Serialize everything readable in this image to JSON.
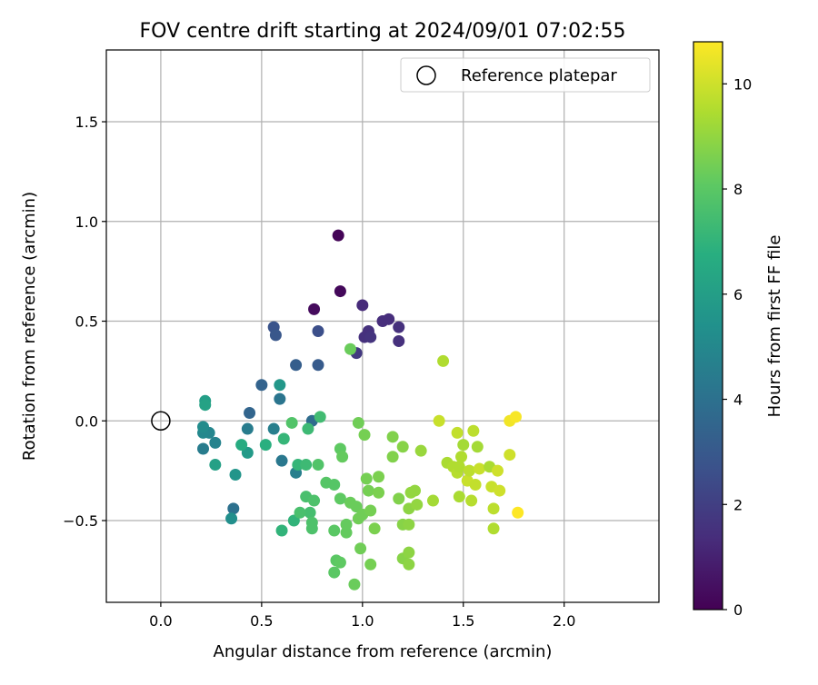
{
  "chart_data": {
    "type": "scatter",
    "title": "FOV centre drift starting at 2024/09/01 07:02:55",
    "xlabel": "Angular distance from reference (arcmin)",
    "ylabel": "Rotation from reference (arcmin)",
    "xlim": [
      -0.27,
      2.47
    ],
    "ylim": [
      -0.91,
      1.86
    ],
    "xticks": [
      "0.0",
      "0.5",
      "1.0",
      "1.5",
      "2.0"
    ],
    "yticks": [
      "−0.5",
      "0.0",
      "0.5",
      "1.0",
      "1.5"
    ],
    "grid": true,
    "legend": {
      "placement": "top-right",
      "entries": [
        "Reference platepar"
      ]
    },
    "colorbar": {
      "label": "Hours from first FF file",
      "range": [
        0,
        10.8
      ],
      "ticks": [
        "0",
        "2",
        "4",
        "6",
        "8",
        "10"
      ],
      "colormap": "viridis"
    },
    "reference_point": {
      "x": 0.0,
      "y": 0.0
    },
    "points": [
      {
        "x": 0.88,
        "y": 0.93,
        "c": 0.1
      },
      {
        "x": 0.89,
        "y": 0.65,
        "c": 0.2
      },
      {
        "x": 0.76,
        "y": 0.56,
        "c": 0.3
      },
      {
        "x": 1.0,
        "y": 0.58,
        "c": 1.3
      },
      {
        "x": 1.1,
        "y": 0.5,
        "c": 1.4
      },
      {
        "x": 1.13,
        "y": 0.51,
        "c": 1.4
      },
      {
        "x": 1.18,
        "y": 0.47,
        "c": 1.5
      },
      {
        "x": 1.18,
        "y": 0.4,
        "c": 1.5
      },
      {
        "x": 1.03,
        "y": 0.45,
        "c": 1.5
      },
      {
        "x": 1.01,
        "y": 0.42,
        "c": 1.5
      },
      {
        "x": 1.04,
        "y": 0.42,
        "c": 1.6
      },
      {
        "x": 0.97,
        "y": 0.34,
        "c": 1.8
      },
      {
        "x": 0.78,
        "y": 0.45,
        "c": 2.6
      },
      {
        "x": 0.56,
        "y": 0.47,
        "c": 2.8
      },
      {
        "x": 0.57,
        "y": 0.43,
        "c": 2.9
      },
      {
        "x": 0.78,
        "y": 0.28,
        "c": 3.1
      },
      {
        "x": 0.67,
        "y": 0.28,
        "c": 3.2
      },
      {
        "x": 0.5,
        "y": 0.18,
        "c": 3.4
      },
      {
        "x": 0.44,
        "y": 0.04,
        "c": 3.5
      },
      {
        "x": 0.75,
        "y": 0.0,
        "c": 3.8
      },
      {
        "x": 0.36,
        "y": -0.44,
        "c": 4.0
      },
      {
        "x": 0.59,
        "y": 0.11,
        "c": 4.2
      },
      {
        "x": 0.6,
        "y": -0.2,
        "c": 4.3
      },
      {
        "x": 0.43,
        "y": -0.04,
        "c": 4.5
      },
      {
        "x": 0.56,
        "y": -0.04,
        "c": 4.6
      },
      {
        "x": 0.67,
        "y": -0.26,
        "c": 4.6
      },
      {
        "x": 0.21,
        "y": -0.14,
        "c": 4.5
      },
      {
        "x": 0.27,
        "y": -0.11,
        "c": 4.8
      },
      {
        "x": 0.24,
        "y": -0.06,
        "c": 4.9
      },
      {
        "x": 0.21,
        "y": -0.06,
        "c": 5.0
      },
      {
        "x": 0.21,
        "y": -0.03,
        "c": 5.2
      },
      {
        "x": 0.35,
        "y": -0.49,
        "c": 5.3
      },
      {
        "x": 0.37,
        "y": -0.27,
        "c": 5.6
      },
      {
        "x": 0.43,
        "y": -0.16,
        "c": 5.8
      },
      {
        "x": 0.59,
        "y": 0.18,
        "c": 5.7
      },
      {
        "x": 0.22,
        "y": 0.1,
        "c": 6.0
      },
      {
        "x": 0.27,
        "y": -0.22,
        "c": 6.1
      },
      {
        "x": 0.22,
        "y": 0.08,
        "c": 6.2
      },
      {
        "x": 0.4,
        "y": -0.12,
        "c": 6.6
      },
      {
        "x": 0.52,
        "y": -0.12,
        "c": 6.8
      },
      {
        "x": 0.6,
        "y": -0.55,
        "c": 7.0
      },
      {
        "x": 0.61,
        "y": -0.09,
        "c": 7.1
      },
      {
        "x": 0.66,
        "y": -0.5,
        "c": 7.0
      },
      {
        "x": 0.68,
        "y": -0.22,
        "c": 7.1
      },
      {
        "x": 0.72,
        "y": -0.22,
        "c": 7.3
      },
      {
        "x": 0.73,
        "y": -0.04,
        "c": 7.3
      },
      {
        "x": 0.79,
        "y": 0.02,
        "c": 7.4
      },
      {
        "x": 0.74,
        "y": -0.46,
        "c": 7.5
      },
      {
        "x": 0.69,
        "y": -0.46,
        "c": 7.6
      },
      {
        "x": 0.72,
        "y": -0.38,
        "c": 7.6
      },
      {
        "x": 0.75,
        "y": -0.51,
        "c": 7.7
      },
      {
        "x": 0.75,
        "y": -0.54,
        "c": 7.7
      },
      {
        "x": 0.76,
        "y": -0.4,
        "c": 7.7
      },
      {
        "x": 0.78,
        "y": -0.22,
        "c": 7.8
      },
      {
        "x": 0.65,
        "y": -0.01,
        "c": 7.8
      },
      {
        "x": 0.82,
        "y": -0.31,
        "c": 7.9
      },
      {
        "x": 0.86,
        "y": -0.32,
        "c": 7.9
      },
      {
        "x": 0.86,
        "y": -0.55,
        "c": 8.0
      },
      {
        "x": 0.87,
        "y": -0.7,
        "c": 8.0
      },
      {
        "x": 0.86,
        "y": -0.76,
        "c": 8.0
      },
      {
        "x": 0.89,
        "y": -0.71,
        "c": 8.1
      },
      {
        "x": 0.89,
        "y": -0.39,
        "c": 8.1
      },
      {
        "x": 0.89,
        "y": -0.14,
        "c": 8.1
      },
      {
        "x": 0.9,
        "y": -0.18,
        "c": 8.2
      },
      {
        "x": 0.92,
        "y": -0.52,
        "c": 8.2
      },
      {
        "x": 0.92,
        "y": -0.56,
        "c": 8.2
      },
      {
        "x": 0.94,
        "y": 0.36,
        "c": 8.3
      },
      {
        "x": 0.94,
        "y": -0.41,
        "c": 8.3
      },
      {
        "x": 0.96,
        "y": -0.82,
        "c": 8.3
      },
      {
        "x": 0.97,
        "y": -0.43,
        "c": 8.3
      },
      {
        "x": 0.98,
        "y": -0.49,
        "c": 8.4
      },
      {
        "x": 0.98,
        "y": -0.01,
        "c": 8.4
      },
      {
        "x": 0.99,
        "y": -0.64,
        "c": 8.4
      },
      {
        "x": 1.0,
        "y": -0.47,
        "c": 8.4
      },
      {
        "x": 1.01,
        "y": -0.07,
        "c": 8.5
      },
      {
        "x": 1.02,
        "y": -0.29,
        "c": 8.5
      },
      {
        "x": 1.03,
        "y": -0.35,
        "c": 8.5
      },
      {
        "x": 1.04,
        "y": -0.72,
        "c": 8.5
      },
      {
        "x": 1.04,
        "y": -0.45,
        "c": 8.5
      },
      {
        "x": 1.06,
        "y": -0.54,
        "c": 8.6
      },
      {
        "x": 1.08,
        "y": -0.36,
        "c": 8.6
      },
      {
        "x": 1.08,
        "y": -0.28,
        "c": 8.6
      },
      {
        "x": 1.15,
        "y": -0.08,
        "c": 8.7
      },
      {
        "x": 1.15,
        "y": -0.18,
        "c": 8.7
      },
      {
        "x": 1.18,
        "y": -0.39,
        "c": 8.7
      },
      {
        "x": 1.2,
        "y": -0.69,
        "c": 8.8
      },
      {
        "x": 1.2,
        "y": -0.52,
        "c": 8.8
      },
      {
        "x": 1.2,
        "y": -0.13,
        "c": 8.8
      },
      {
        "x": 1.23,
        "y": -0.72,
        "c": 8.9
      },
      {
        "x": 1.23,
        "y": -0.66,
        "c": 8.9
      },
      {
        "x": 1.23,
        "y": -0.52,
        "c": 8.9
      },
      {
        "x": 1.23,
        "y": -0.44,
        "c": 8.9
      },
      {
        "x": 1.24,
        "y": -0.36,
        "c": 9.0
      },
      {
        "x": 1.26,
        "y": -0.35,
        "c": 9.0
      },
      {
        "x": 1.27,
        "y": -0.42,
        "c": 9.0
      },
      {
        "x": 1.29,
        "y": -0.15,
        "c": 9.1
      },
      {
        "x": 1.35,
        "y": -0.4,
        "c": 9.3
      },
      {
        "x": 1.4,
        "y": 0.3,
        "c": 9.5
      },
      {
        "x": 1.42,
        "y": -0.21,
        "c": 9.4
      },
      {
        "x": 1.45,
        "y": -0.23,
        "c": 9.5
      },
      {
        "x": 1.47,
        "y": -0.26,
        "c": 9.6
      },
      {
        "x": 1.48,
        "y": -0.23,
        "c": 9.5
      },
      {
        "x": 1.48,
        "y": -0.38,
        "c": 9.4
      },
      {
        "x": 1.49,
        "y": -0.18,
        "c": 9.5
      },
      {
        "x": 1.5,
        "y": -0.12,
        "c": 9.3
      },
      {
        "x": 1.47,
        "y": -0.06,
        "c": 9.8
      },
      {
        "x": 1.38,
        "y": 0.0,
        "c": 9.9
      },
      {
        "x": 1.52,
        "y": -0.3,
        "c": 9.9
      },
      {
        "x": 1.53,
        "y": -0.25,
        "c": 9.7
      },
      {
        "x": 1.54,
        "y": -0.4,
        "c": 9.6
      },
      {
        "x": 1.55,
        "y": -0.05,
        "c": 9.7
      },
      {
        "x": 1.56,
        "y": -0.32,
        "c": 9.8
      },
      {
        "x": 1.57,
        "y": -0.13,
        "c": 9.3
      },
      {
        "x": 1.58,
        "y": -0.24,
        "c": 9.9
      },
      {
        "x": 1.63,
        "y": -0.23,
        "c": 9.4
      },
      {
        "x": 1.64,
        "y": -0.33,
        "c": 9.9
      },
      {
        "x": 1.65,
        "y": -0.44,
        "c": 9.7
      },
      {
        "x": 1.65,
        "y": -0.54,
        "c": 9.5
      },
      {
        "x": 1.67,
        "y": -0.25,
        "c": 10.0
      },
      {
        "x": 1.68,
        "y": -0.35,
        "c": 10.0
      },
      {
        "x": 1.73,
        "y": -0.17,
        "c": 10.0
      },
      {
        "x": 1.73,
        "y": 0.0,
        "c": 10.6
      },
      {
        "x": 1.76,
        "y": 0.02,
        "c": 10.7
      },
      {
        "x": 1.77,
        "y": -0.46,
        "c": 10.8
      }
    ]
  }
}
